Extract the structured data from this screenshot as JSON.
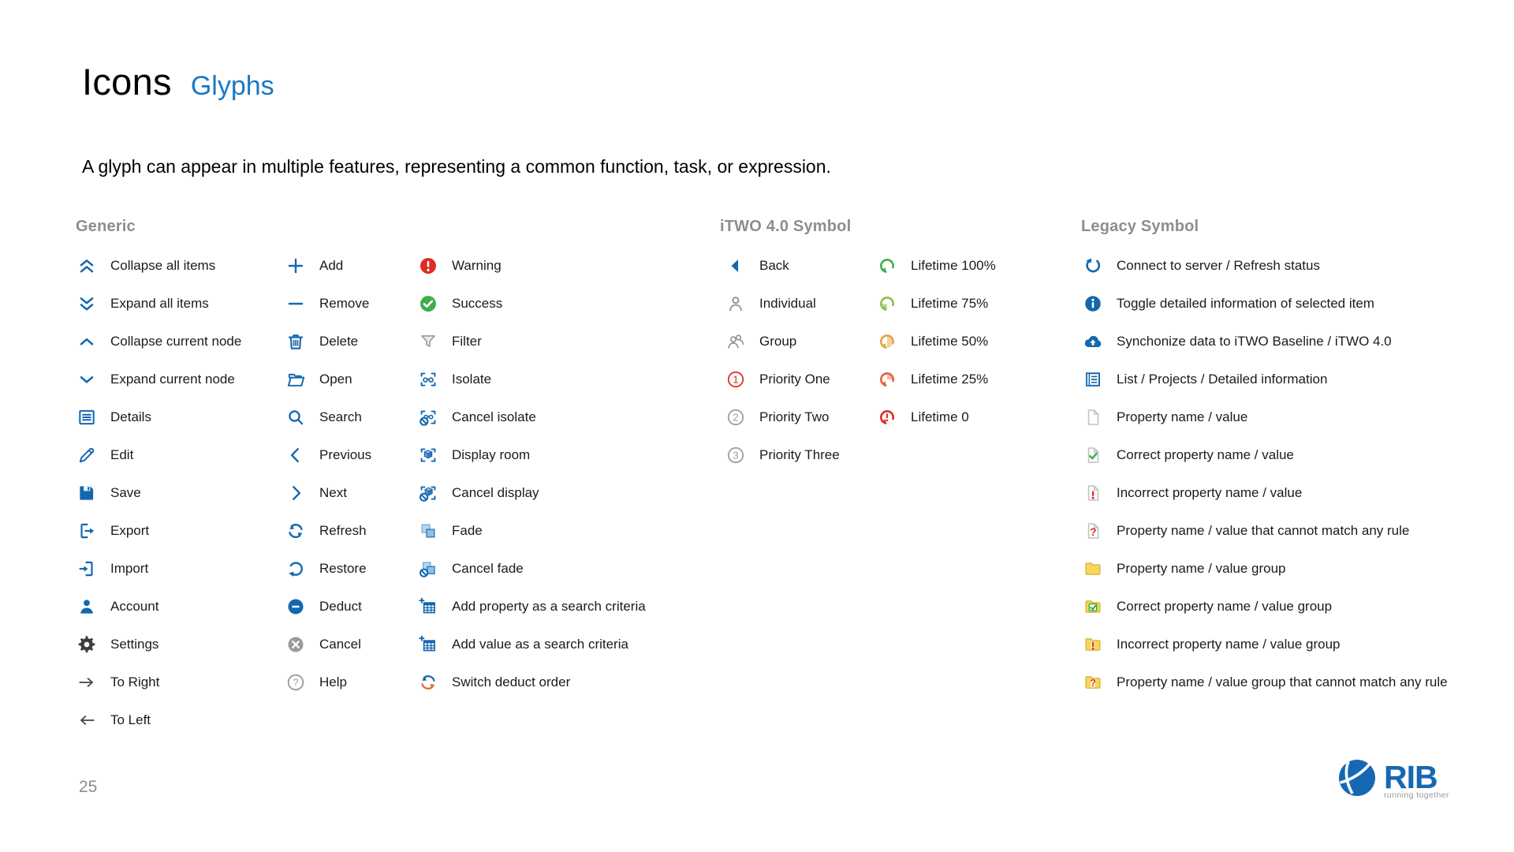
{
  "page": {
    "title": "Icons",
    "subtitle": "Glyphs",
    "description": "A glyph can appear in multiple features, representing a common function, task, or expression.",
    "page_number": "25"
  },
  "colors": {
    "accent_blue": "#1467af",
    "title_blue": "#1a78c2",
    "section_header_gray": "#8d8d8d",
    "warning_red": "#dd2c23",
    "success_green": "#3fae49",
    "lifetime_75_green": "#8cc152",
    "lifetime_50_amber": "#e8a33d",
    "lifetime_25_orange": "#e4643b",
    "folder_yellow": "#f5d75a",
    "neutral_gray": "#9b9b9b",
    "gear_dark": "#3c3c3c"
  },
  "sections": [
    {
      "title": "Generic",
      "columns": [
        [
          {
            "icon": "collapse-all-items-icon",
            "label": "Collapse all items"
          },
          {
            "icon": "expand-all-items-icon",
            "label": "Expand all items"
          },
          {
            "icon": "collapse-current-node-icon",
            "label": "Collapse current node"
          },
          {
            "icon": "expand-current-node-icon",
            "label": "Expand current node"
          },
          {
            "icon": "details-icon",
            "label": "Details"
          },
          {
            "icon": "edit-icon",
            "label": "Edit"
          },
          {
            "icon": "save-icon",
            "label": "Save"
          },
          {
            "icon": "export-icon",
            "label": "Export"
          },
          {
            "icon": "import-icon",
            "label": "Import"
          },
          {
            "icon": "account-icon",
            "label": "Account"
          },
          {
            "icon": "settings-icon",
            "label": "Settings"
          },
          {
            "icon": "to-right-icon",
            "label": "To Right"
          },
          {
            "icon": "to-left-icon",
            "label": "To Left"
          }
        ],
        [
          {
            "icon": "add-icon",
            "label": "Add"
          },
          {
            "icon": "remove-icon",
            "label": "Remove"
          },
          {
            "icon": "delete-icon",
            "label": "Delete"
          },
          {
            "icon": "open-icon",
            "label": "Open"
          },
          {
            "icon": "search-icon",
            "label": "Search"
          },
          {
            "icon": "previous-icon",
            "label": "Previous"
          },
          {
            "icon": "next-icon",
            "label": "Next"
          },
          {
            "icon": "refresh-icon",
            "label": "Refresh"
          },
          {
            "icon": "restore-icon",
            "label": "Restore"
          },
          {
            "icon": "deduct-icon",
            "label": "Deduct"
          },
          {
            "icon": "cancel-icon",
            "label": "Cancel"
          },
          {
            "icon": "help-icon",
            "label": "Help"
          }
        ],
        [
          {
            "icon": "warning-icon",
            "label": "Warning"
          },
          {
            "icon": "success-icon",
            "label": "Success"
          },
          {
            "icon": "filter-icon",
            "label": "Filter"
          },
          {
            "icon": "isolate-icon",
            "label": "Isolate"
          },
          {
            "icon": "cancel-isolate-icon",
            "label": "Cancel isolate"
          },
          {
            "icon": "display-room-icon",
            "label": "Display room"
          },
          {
            "icon": "cancel-display-icon",
            "label": "Cancel display"
          },
          {
            "icon": "fade-icon",
            "label": "Fade"
          },
          {
            "icon": "cancel-fade-icon",
            "label": "Cancel fade"
          },
          {
            "icon": "add-property-search-icon",
            "label": "Add property as a search criteria"
          },
          {
            "icon": "add-value-search-icon",
            "label": "Add value as a search criteria"
          },
          {
            "icon": "switch-deduct-order-icon",
            "label": "Switch deduct order"
          }
        ]
      ]
    },
    {
      "title": "iTWO 4.0 Symbol",
      "columns": [
        [
          {
            "icon": "back-icon",
            "label": "Back"
          },
          {
            "icon": "individual-icon",
            "label": "Individual"
          },
          {
            "icon": "group-icon",
            "label": "Group"
          },
          {
            "icon": "priority-one-icon",
            "label": "Priority One"
          },
          {
            "icon": "priority-two-icon",
            "label": "Priority Two"
          },
          {
            "icon": "priority-three-icon",
            "label": "Priority Three"
          }
        ],
        [
          {
            "icon": "lifetime-100-icon",
            "label": "Lifetime 100%"
          },
          {
            "icon": "lifetime-75-icon",
            "label": "Lifetime 75%"
          },
          {
            "icon": "lifetime-50-icon",
            "label": "Lifetime 50%"
          },
          {
            "icon": "lifetime-25-icon",
            "label": "Lifetime 25%"
          },
          {
            "icon": "lifetime-0-icon",
            "label": "Lifetime 0"
          }
        ]
      ]
    },
    {
      "title": "Legacy Symbol",
      "columns": [
        [
          {
            "icon": "connect-server-icon",
            "label": "Connect to server / Refresh status"
          },
          {
            "icon": "toggle-info-icon",
            "label": "Toggle detailed information of selected item"
          },
          {
            "icon": "sync-baseline-icon",
            "label": "Synchonize data to iTWO Baseline / iTWO 4.0"
          },
          {
            "icon": "list-projects-icon",
            "label": "List / Projects / Detailed information"
          },
          {
            "icon": "property-doc-icon",
            "label": "Property name / value"
          },
          {
            "icon": "property-doc-correct-icon",
            "label": "Correct property name / value"
          },
          {
            "icon": "property-doc-incorrect-icon",
            "label": "Incorrect property name / value"
          },
          {
            "icon": "property-doc-nomatch-icon",
            "label": "Property name / value that cannot match any rule"
          },
          {
            "icon": "property-group-icon",
            "label": "Property name / value group"
          },
          {
            "icon": "property-group-correct-icon",
            "label": "Correct property name / value group"
          },
          {
            "icon": "property-group-incorrect-icon",
            "label": "Incorrect property name / value group"
          },
          {
            "icon": "property-group-nomatch-icon",
            "label": "Property name / value group that cannot match any rule"
          }
        ]
      ]
    }
  ],
  "logo": {
    "brand": "RIB",
    "tagline": "running together"
  }
}
